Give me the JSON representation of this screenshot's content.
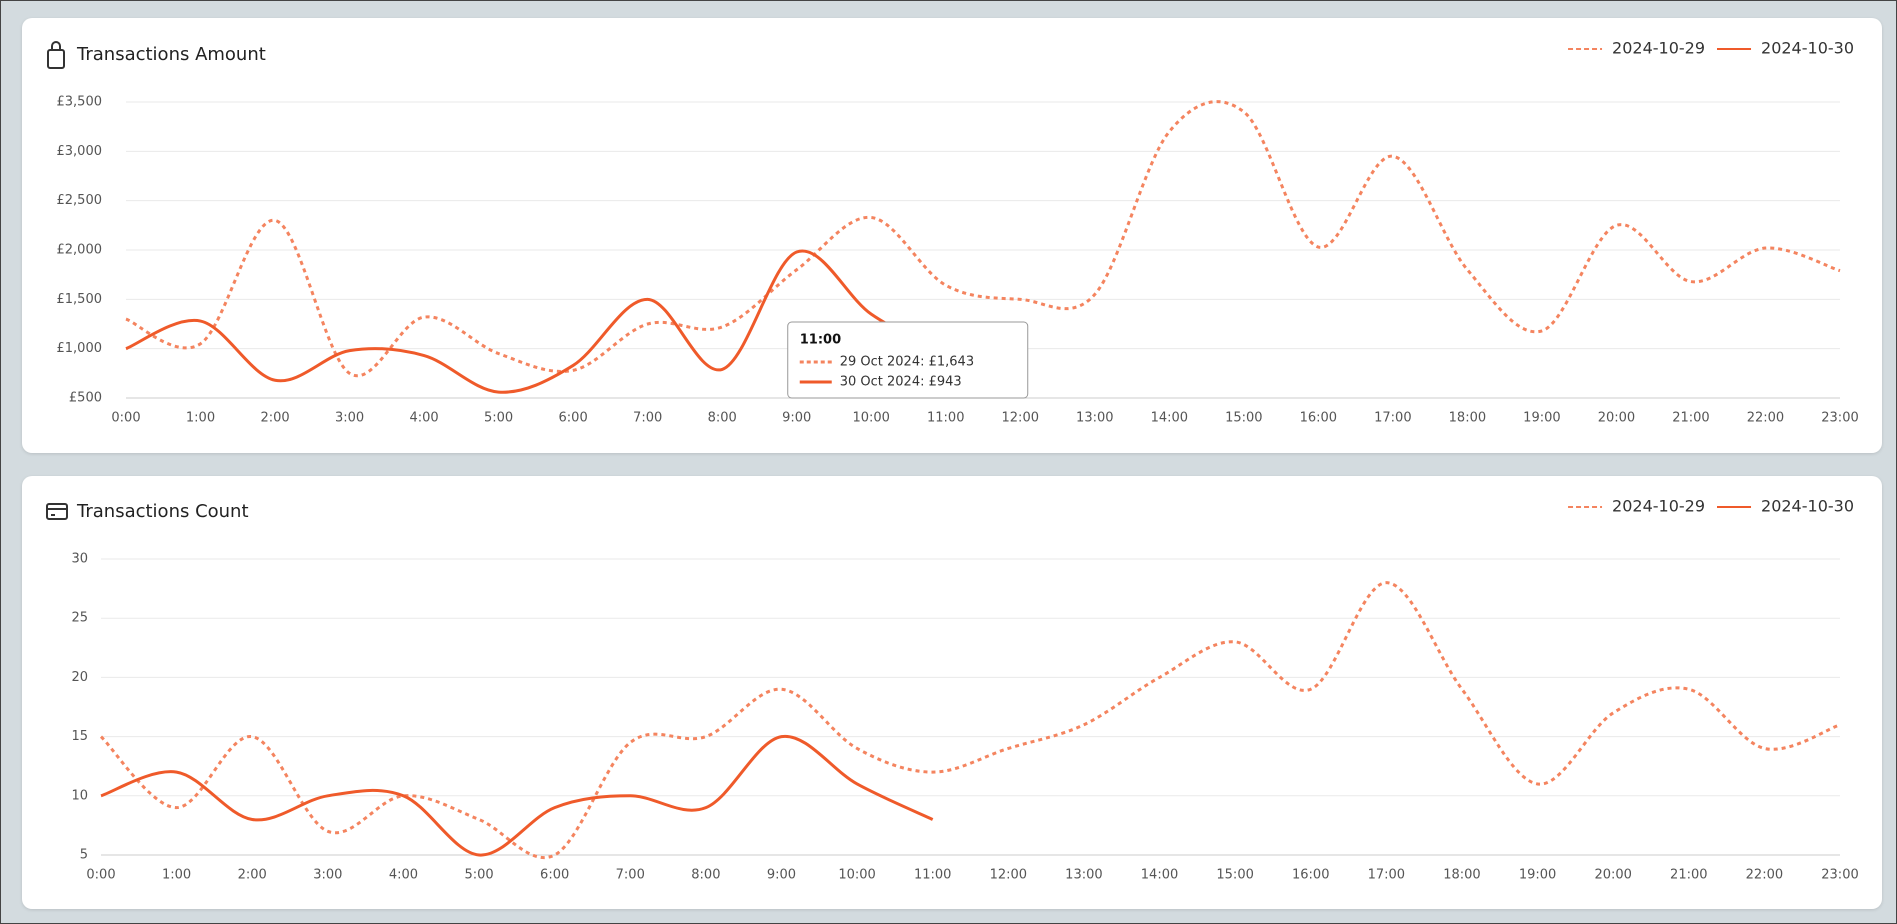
{
  "chart_data": [
    {
      "type": "line",
      "title": "Transactions Amount",
      "categories": [
        "0:00",
        "1:00",
        "2:00",
        "3:00",
        "4:00",
        "5:00",
        "6:00",
        "7:00",
        "8:00",
        "9:00",
        "10:00",
        "11:00",
        "12:00",
        "13:00",
        "14:00",
        "15:00",
        "16:00",
        "17:00",
        "18:00",
        "19:00",
        "20:00",
        "21:00",
        "22:00",
        "23:00"
      ],
      "series": [
        {
          "name": "2024-10-29",
          "color": "#f4845f",
          "style": "dotted",
          "values": [
            1300,
            1050,
            2300,
            750,
            1320,
            950,
            780,
            1250,
            1220,
            1800,
            2330,
            1643,
            1500,
            1550,
            3200,
            3400,
            2030,
            2950,
            1800,
            1180,
            2250,
            1680,
            2020,
            1790
          ]
        },
        {
          "name": "2024-10-30",
          "color": "#ef5a2a",
          "style": "solid",
          "values": [
            1000,
            1280,
            680,
            980,
            930,
            560,
            830,
            1500,
            790,
            1980,
            1350,
            943,
            null,
            null,
            null,
            null,
            null,
            null,
            null,
            null,
            null,
            null,
            null,
            null
          ]
        }
      ],
      "ylim": [
        500,
        3500
      ],
      "yticks": [
        {
          "value": 500,
          "label": "£500"
        },
        {
          "value": 1000,
          "label": "£1,000"
        },
        {
          "value": 1500,
          "label": "£1,500"
        },
        {
          "value": 2000,
          "label": "£2,000"
        },
        {
          "value": 2500,
          "label": "£2,500"
        },
        {
          "value": 3000,
          "label": "£3,000"
        },
        {
          "value": 3500,
          "label": "£3,500"
        }
      ],
      "grid": true,
      "legend": "top-right",
      "tooltip": {
        "title": "11:00",
        "items": [
          "29 Oct 2024: £1,643",
          "30 Oct 2024: £943"
        ]
      }
    },
    {
      "type": "line",
      "title": "Transactions Count",
      "categories": [
        "0:00",
        "1:00",
        "2:00",
        "3:00",
        "4:00",
        "5:00",
        "6:00",
        "7:00",
        "8:00",
        "9:00",
        "10:00",
        "11:00",
        "12:00",
        "13:00",
        "14:00",
        "15:00",
        "16:00",
        "17:00",
        "18:00",
        "19:00",
        "20:00",
        "21:00",
        "22:00",
        "23:00"
      ],
      "series": [
        {
          "name": "2024-10-29",
          "color": "#f4845f",
          "style": "dotted",
          "values": [
            15,
            9,
            15,
            7,
            10,
            8,
            5,
            14.5,
            15,
            19,
            14,
            12,
            14,
            16,
            20,
            23,
            19,
            28,
            19,
            11,
            17,
            19,
            14,
            16
          ]
        },
        {
          "name": "2024-10-30",
          "color": "#ef5a2a",
          "style": "solid",
          "values": [
            10,
            12,
            8,
            10,
            10,
            5,
            9,
            10,
            9,
            15,
            11,
            8,
            null,
            null,
            null,
            null,
            null,
            null,
            null,
            null,
            null,
            null,
            null,
            null
          ]
        }
      ],
      "ylim": [
        5,
        30
      ],
      "yticks": [
        5,
        10,
        15,
        20,
        25,
        30
      ],
      "grid": true,
      "legend": "top-right"
    }
  ]
}
